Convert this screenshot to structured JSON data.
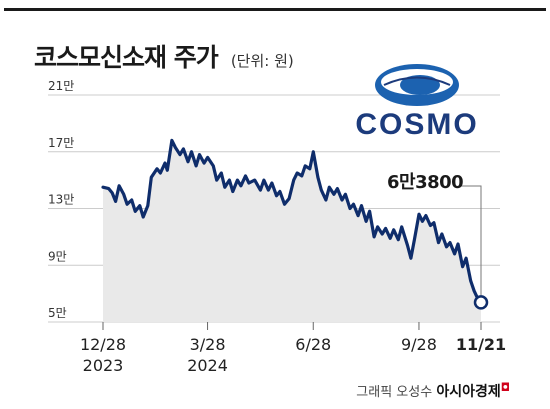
{
  "header": {
    "title": "코스모신소재 주가",
    "unit": "(단위: 원)"
  },
  "logo": {
    "text": "COSMO",
    "color": "#1c3b7c",
    "accent_color": "#1c62b0"
  },
  "callout": {
    "label": "6만3800"
  },
  "credit": {
    "text": "그래픽 오성수",
    "source": "아시아경제"
  },
  "colors": {
    "line": "#0f2d6b",
    "area": "#e9e9e9",
    "grid": "#cccccc"
  },
  "chart_data": {
    "type": "area",
    "title": "코스모신소재 주가",
    "unit": "원",
    "ylim": [
      50000,
      210000
    ],
    "yticks": [
      {
        "value": 50000,
        "label": "5만"
      },
      {
        "value": 90000,
        "label": "9만"
      },
      {
        "value": 130000,
        "label": "13만"
      },
      {
        "value": 170000,
        "label": "17만"
      },
      {
        "value": 210000,
        "label": "21만"
      }
    ],
    "xticks": [
      {
        "date": "2023-12-28",
        "label": "12/28",
        "sublabel": "2023"
      },
      {
        "date": "2024-03-28",
        "label": "3/28",
        "sublabel": "2024"
      },
      {
        "date": "2024-06-28",
        "label": "6/28",
        "sublabel": ""
      },
      {
        "date": "2024-09-28",
        "label": "9/28",
        "sublabel": ""
      },
      {
        "date": "2024-11-21",
        "label": "11/21",
        "sublabel": ""
      }
    ],
    "grid": true,
    "last_value": {
      "date": "2024-11-21",
      "value": 63800,
      "label": "6만3800"
    },
    "series": [
      {
        "values": [
          [
            "2023-12-28",
            145000
          ],
          [
            "2024-01-02",
            144000
          ],
          [
            "2024-01-05",
            141000
          ],
          [
            "2024-01-08",
            135000
          ],
          [
            "2024-01-11",
            146000
          ],
          [
            "2024-01-15",
            140000
          ],
          [
            "2024-01-18",
            133000
          ],
          [
            "2024-01-22",
            136000
          ],
          [
            "2024-01-25",
            128000
          ],
          [
            "2024-01-29",
            132000
          ],
          [
            "2024-02-01",
            124000
          ],
          [
            "2024-02-05",
            132000
          ],
          [
            "2024-02-08",
            152000
          ],
          [
            "2024-02-13",
            158000
          ],
          [
            "2024-02-16",
            155000
          ],
          [
            "2024-02-20",
            162000
          ],
          [
            "2024-02-22",
            157000
          ],
          [
            "2024-02-26",
            178000
          ],
          [
            "2024-02-29",
            173000
          ],
          [
            "2024-03-04",
            168000
          ],
          [
            "2024-03-07",
            172000
          ],
          [
            "2024-03-11",
            163000
          ],
          [
            "2024-03-14",
            170000
          ],
          [
            "2024-03-18",
            160000
          ],
          [
            "2024-03-21",
            168000
          ],
          [
            "2024-03-25",
            162000
          ],
          [
            "2024-03-28",
            166000
          ],
          [
            "2024-04-02",
            160000
          ],
          [
            "2024-04-05",
            150000
          ],
          [
            "2024-04-09",
            155000
          ],
          [
            "2024-04-12",
            145000
          ],
          [
            "2024-04-16",
            150000
          ],
          [
            "2024-04-19",
            142000
          ],
          [
            "2024-04-23",
            150000
          ],
          [
            "2024-04-26",
            146000
          ],
          [
            "2024-04-30",
            153000
          ],
          [
            "2024-05-03",
            148000
          ],
          [
            "2024-05-08",
            150000
          ],
          [
            "2024-05-13",
            143000
          ],
          [
            "2024-05-16",
            150000
          ],
          [
            "2024-05-20",
            143000
          ],
          [
            "2024-05-23",
            148000
          ],
          [
            "2024-05-27",
            139000
          ],
          [
            "2024-05-30",
            142000
          ],
          [
            "2024-06-03",
            133000
          ],
          [
            "2024-06-07",
            137000
          ],
          [
            "2024-06-11",
            150000
          ],
          [
            "2024-06-14",
            155000
          ],
          [
            "2024-06-18",
            153000
          ],
          [
            "2024-06-21",
            160000
          ],
          [
            "2024-06-25",
            158000
          ],
          [
            "2024-06-28",
            170000
          ],
          [
            "2024-07-02",
            152000
          ],
          [
            "2024-07-05",
            143000
          ],
          [
            "2024-07-09",
            136000
          ],
          [
            "2024-07-12",
            145000
          ],
          [
            "2024-07-16",
            140000
          ],
          [
            "2024-07-19",
            144000
          ],
          [
            "2024-07-23",
            136000
          ],
          [
            "2024-07-26",
            140000
          ],
          [
            "2024-07-30",
            130000
          ],
          [
            "2024-08-02",
            133000
          ],
          [
            "2024-08-06",
            125000
          ],
          [
            "2024-08-09",
            132000
          ],
          [
            "2024-08-13",
            121000
          ],
          [
            "2024-08-16",
            128000
          ],
          [
            "2024-08-20",
            110000
          ],
          [
            "2024-08-23",
            117000
          ],
          [
            "2024-08-27",
            112000
          ],
          [
            "2024-08-30",
            116000
          ],
          [
            "2024-09-03",
            109000
          ],
          [
            "2024-09-06",
            115000
          ],
          [
            "2024-09-10",
            108000
          ],
          [
            "2024-09-13",
            117000
          ],
          [
            "2024-09-18",
            104000
          ],
          [
            "2024-09-21",
            95000
          ],
          [
            "2024-09-24",
            108000
          ],
          [
            "2024-09-28",
            126000
          ],
          [
            "2024-10-01",
            121000
          ],
          [
            "2024-10-04",
            125000
          ],
          [
            "2024-10-08",
            118000
          ],
          [
            "2024-10-11",
            120000
          ],
          [
            "2024-10-15",
            106000
          ],
          [
            "2024-10-18",
            112000
          ],
          [
            "2024-10-22",
            103000
          ],
          [
            "2024-10-25",
            106000
          ],
          [
            "2024-10-29",
            98000
          ],
          [
            "2024-11-01",
            105000
          ],
          [
            "2024-11-05",
            89000
          ],
          [
            "2024-11-08",
            95000
          ],
          [
            "2024-11-12",
            79000
          ],
          [
            "2024-11-15",
            72000
          ],
          [
            "2024-11-19",
            65000
          ],
          [
            "2024-11-21",
            63800
          ]
        ]
      }
    ]
  }
}
